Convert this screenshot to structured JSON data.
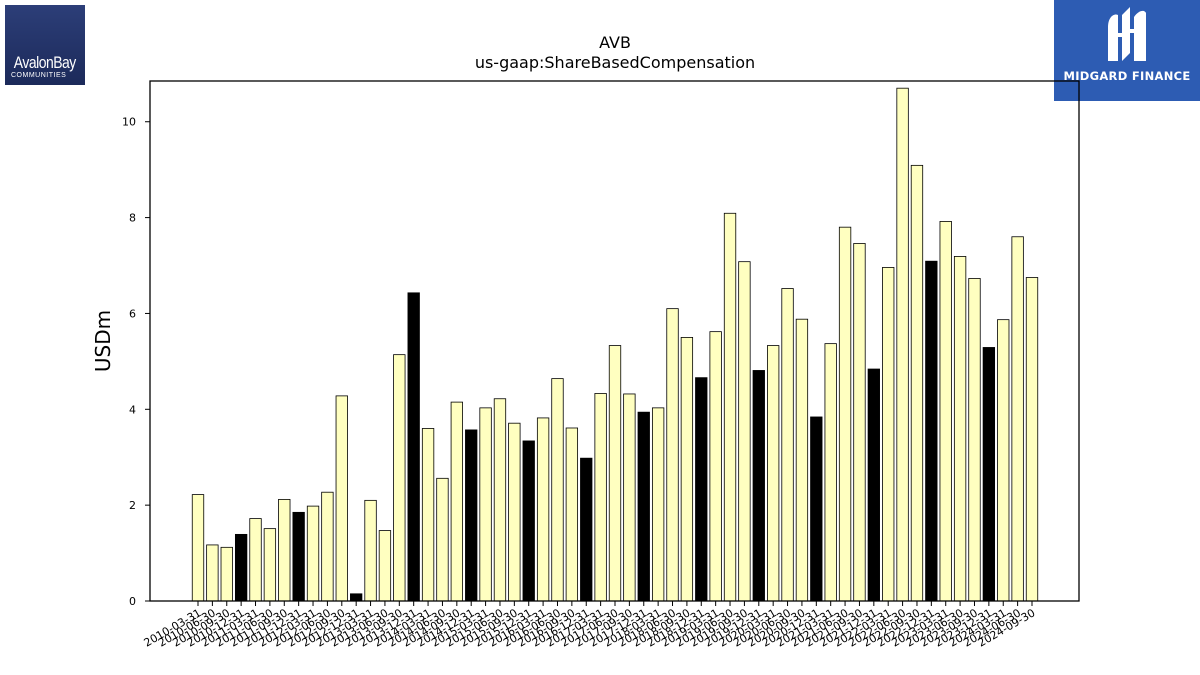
{
  "logos": {
    "left": {
      "name": "AvalonBay",
      "sub": "COMMUNITIES"
    },
    "right": {
      "wordmark": "MIDGARD FINANCE"
    }
  },
  "chart_data": {
    "type": "bar",
    "title": "AVB",
    "subtitle": "us-gaap:ShareBasedCompensation",
    "xlabel": "",
    "ylabel": "USDm",
    "ylim": [
      0,
      10.85
    ],
    "yticks": [
      0,
      2,
      4,
      6,
      8,
      10
    ],
    "grid": false,
    "colors": {
      "quarter": "#ffffc0",
      "annual": "#000000",
      "edge": "#000000"
    },
    "categories": [
      "2010-03-31",
      "2010-06-30",
      "2010-09-30",
      "2010-12-31",
      "2011-03-31",
      "2011-06-30",
      "2011-09-30",
      "2011-12-31",
      "2012-03-31",
      "2012-06-30",
      "2012-09-30",
      "2012-12-31",
      "2013-03-31",
      "2013-06-30",
      "2013-09-30",
      "2013-12-31",
      "2014-03-31",
      "2014-06-30",
      "2014-09-30",
      "2014-12-31",
      "2015-03-31",
      "2015-06-30",
      "2015-09-30",
      "2015-12-31",
      "2016-03-31",
      "2016-06-30",
      "2016-09-30",
      "2016-12-31",
      "2017-03-31",
      "2017-06-30",
      "2017-09-30",
      "2017-12-31",
      "2018-03-31",
      "2018-06-30",
      "2018-09-30",
      "2018-12-31",
      "2019-03-31",
      "2019-06-30",
      "2019-09-30",
      "2019-12-31",
      "2020-03-31",
      "2020-06-30",
      "2020-09-30",
      "2020-12-31",
      "2021-03-31",
      "2021-06-30",
      "2021-09-30",
      "2021-12-31",
      "2022-03-31",
      "2022-06-30",
      "2022-09-30",
      "2022-12-31",
      "2023-03-31",
      "2023-06-30",
      "2023-09-30",
      "2023-12-31",
      "2024-03-31",
      "2024-06-30",
      "2024-09-30"
    ],
    "values": [
      2.22,
      1.17,
      1.12,
      1.39,
      1.72,
      1.51,
      2.12,
      1.85,
      1.98,
      2.27,
      4.28,
      0.15,
      2.1,
      1.47,
      5.14,
      6.43,
      3.6,
      2.56,
      4.15,
      3.57,
      4.03,
      4.22,
      3.71,
      3.34,
      3.82,
      4.64,
      3.61,
      2.98,
      4.33,
      5.33,
      4.32,
      3.94,
      4.03,
      6.1,
      5.5,
      4.66,
      5.62,
      8.09,
      7.08,
      4.81,
      5.33,
      6.52,
      5.88,
      3.84,
      5.37,
      7.8,
      7.46,
      4.84,
      6.96,
      10.7,
      9.09,
      7.09,
      7.92,
      7.19,
      6.73,
      5.29,
      5.87,
      7.6,
      6.75
    ],
    "annual": [
      false,
      false,
      false,
      true,
      false,
      false,
      false,
      true,
      false,
      false,
      false,
      true,
      false,
      false,
      false,
      true,
      false,
      false,
      false,
      true,
      false,
      false,
      false,
      true,
      false,
      false,
      false,
      true,
      false,
      false,
      false,
      true,
      false,
      false,
      false,
      true,
      false,
      false,
      false,
      true,
      false,
      false,
      false,
      true,
      false,
      false,
      false,
      true,
      false,
      false,
      false,
      true,
      false,
      false,
      false,
      true,
      false,
      false,
      false
    ]
  }
}
